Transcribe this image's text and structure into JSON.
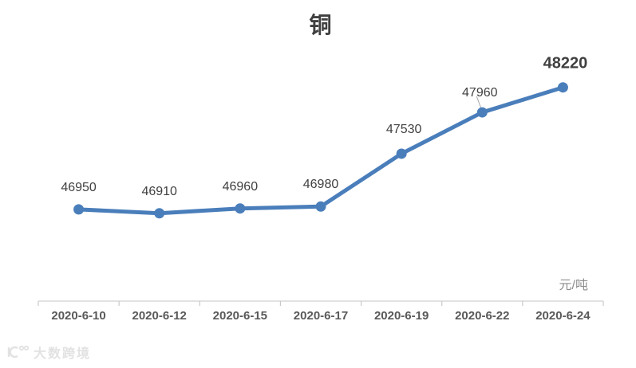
{
  "chart": {
    "title": "铜",
    "unit_label": "元/吨",
    "watermark_text": "大数跨境"
  },
  "chart_data": {
    "type": "line",
    "title": "铜",
    "categories": [
      "2020-6-10",
      "2020-6-12",
      "2020-6-15",
      "2020-6-17",
      "2020-6-19",
      "2020-6-22",
      "2020-6-24"
    ],
    "values": [
      46950,
      46910,
      46960,
      46980,
      47530,
      47960,
      48220
    ],
    "xlabel": "",
    "ylabel": "元/吨",
    "ylim": [
      46800,
      48400
    ],
    "series_color": "#4A7EBB",
    "axis_color": "#d9d9d9",
    "data_label_color": "#404040",
    "data_labels": true,
    "grid": false,
    "legend": false,
    "last_point_label_bold": true
  }
}
